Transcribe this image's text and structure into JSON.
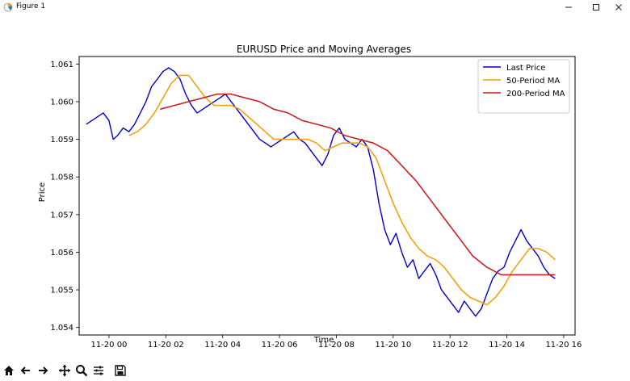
{
  "window": {
    "title": "Figure 1"
  },
  "toolbar": {
    "buttons": [
      "home-icon",
      "back-arrow-icon",
      "forward-arrow-icon",
      "pan-icon",
      "zoom-icon",
      "configure-subplots-icon",
      "save-icon"
    ],
    "status": ""
  },
  "colors": {
    "last_price": "#0000cc",
    "ma50": "#f0a30a",
    "ma200": "#cc1f1f"
  },
  "chart_data": {
    "type": "line",
    "title": "EURUSD Price and Moving Averages",
    "xlabel": "Time",
    "ylabel": "Price",
    "x_ticks": [
      "11-20 00",
      "11-20 02",
      "11-20 04",
      "11-20 06",
      "11-20 08",
      "11-20 10",
      "11-20 12",
      "11-20 14",
      "11-20 16"
    ],
    "y_ticks": [
      "1.054",
      "1.055",
      "1.056",
      "1.057",
      "1.058",
      "1.059",
      "1.060",
      "1.061"
    ],
    "xlim_hours": [
      -1.05,
      16.4
    ],
    "ylim": [
      1.0538,
      1.0612
    ],
    "legend_position": "top-right",
    "grid": false,
    "series": [
      {
        "name": "Last Price",
        "x_hours": [
          -0.8,
          -0.6,
          -0.4,
          -0.2,
          0.0,
          0.15,
          0.3,
          0.5,
          0.7,
          0.9,
          1.1,
          1.3,
          1.5,
          1.7,
          1.9,
          2.1,
          2.3,
          2.5,
          2.7,
          2.9,
          3.1,
          3.3,
          3.5,
          3.7,
          3.9,
          4.1,
          4.3,
          4.5,
          4.7,
          4.9,
          5.1,
          5.3,
          5.5,
          5.7,
          5.9,
          6.1,
          6.3,
          6.5,
          6.7,
          6.9,
          7.1,
          7.3,
          7.5,
          7.7,
          7.9,
          8.1,
          8.3,
          8.5,
          8.7,
          8.9,
          9.1,
          9.3,
          9.5,
          9.7,
          9.9,
          10.1,
          10.3,
          10.5,
          10.7,
          10.9,
          11.1,
          11.3,
          11.5,
          11.7,
          11.9,
          12.1,
          12.3,
          12.5,
          12.7,
          12.9,
          13.1,
          13.3,
          13.5,
          13.7,
          13.9,
          14.1,
          14.3,
          14.5,
          14.7,
          14.9,
          15.1,
          15.3,
          15.5,
          15.7
        ],
        "values": [
          1.0594,
          1.0595,
          1.0596,
          1.0597,
          1.0595,
          1.059,
          1.0591,
          1.0593,
          1.0592,
          1.0594,
          1.0597,
          1.06,
          1.0604,
          1.0606,
          1.0608,
          1.0609,
          1.0608,
          1.0606,
          1.0602,
          1.0599,
          1.0597,
          1.0598,
          1.0599,
          1.06,
          1.0601,
          1.0602,
          1.06,
          1.0598,
          1.0596,
          1.0594,
          1.0592,
          1.059,
          1.0589,
          1.0588,
          1.0589,
          1.059,
          1.0591,
          1.0592,
          1.059,
          1.0589,
          1.0587,
          1.0585,
          1.0583,
          1.0586,
          1.0591,
          1.0593,
          1.059,
          1.0589,
          1.0588,
          1.059,
          1.0588,
          1.0582,
          1.0573,
          1.0566,
          1.0562,
          1.0565,
          1.056,
          1.0556,
          1.0558,
          1.0553,
          1.0555,
          1.0557,
          1.0554,
          1.055,
          1.0548,
          1.0546,
          1.0544,
          1.0547,
          1.0545,
          1.0543,
          1.0545,
          1.0549,
          1.0553,
          1.0555,
          1.0556,
          1.056,
          1.0563,
          1.0566,
          1.0563,
          1.0561,
          1.0559,
          1.0556,
          1.0554,
          1.0553
        ]
      },
      {
        "name": "50-Period MA",
        "x_hours": [
          0.7,
          1.0,
          1.3,
          1.6,
          1.9,
          2.2,
          2.5,
          2.8,
          3.1,
          3.4,
          3.7,
          4.0,
          4.3,
          4.6,
          4.9,
          5.2,
          5.5,
          5.8,
          6.1,
          6.4,
          6.7,
          7.0,
          7.3,
          7.6,
          7.9,
          8.2,
          8.5,
          8.8,
          9.1,
          9.4,
          9.7,
          10.0,
          10.3,
          10.6,
          10.9,
          11.2,
          11.5,
          11.8,
          12.1,
          12.4,
          12.7,
          13.0,
          13.3,
          13.6,
          13.9,
          14.2,
          14.5,
          14.8,
          15.1,
          15.4,
          15.7
        ],
        "values": [
          1.0591,
          1.0592,
          1.0594,
          1.0597,
          1.0601,
          1.0605,
          1.0607,
          1.0607,
          1.0604,
          1.0601,
          1.0599,
          1.0599,
          1.0599,
          1.0598,
          1.0596,
          1.0594,
          1.0592,
          1.059,
          1.059,
          1.059,
          1.059,
          1.059,
          1.0589,
          1.0587,
          1.0588,
          1.0589,
          1.0589,
          1.0589,
          1.0588,
          1.0585,
          1.0579,
          1.0573,
          1.0568,
          1.0564,
          1.0561,
          1.0559,
          1.0558,
          1.0556,
          1.0553,
          1.055,
          1.0548,
          1.0547,
          1.0546,
          1.0548,
          1.0551,
          1.0555,
          1.0558,
          1.0561,
          1.0561,
          1.056,
          1.0558
        ]
      },
      {
        "name": "200-Period MA",
        "x_hours": [
          1.8,
          2.3,
          2.8,
          3.3,
          3.8,
          4.3,
          4.8,
          5.3,
          5.8,
          6.3,
          6.8,
          7.3,
          7.8,
          8.3,
          8.8,
          9.3,
          9.8,
          10.3,
          10.8,
          11.3,
          11.8,
          12.3,
          12.8,
          13.3,
          13.8,
          14.3,
          14.8,
          15.3,
          15.7
        ],
        "values": [
          1.0598,
          1.0599,
          1.06,
          1.0601,
          1.0602,
          1.0602,
          1.0601,
          1.06,
          1.0598,
          1.0597,
          1.0595,
          1.0594,
          1.0593,
          1.0591,
          1.059,
          1.0589,
          1.0587,
          1.0583,
          1.0579,
          1.0574,
          1.0569,
          1.0564,
          1.0559,
          1.0556,
          1.0554,
          1.0554,
          1.0554,
          1.0554,
          1.0554
        ]
      }
    ]
  }
}
